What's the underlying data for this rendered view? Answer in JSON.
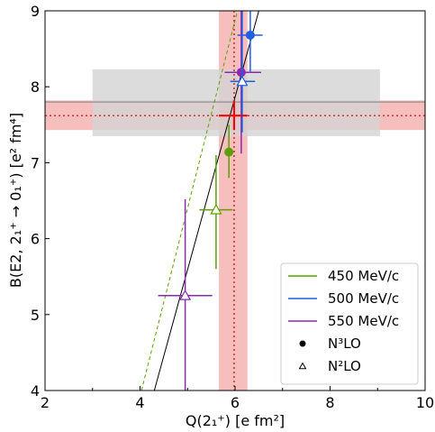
{
  "chart_data": {
    "type": "scatter",
    "xlabel": "Q(2₁⁺) [e fm²]",
    "ylabel": "B(E2, 2₁⁺ → 0₁⁺) [e² fm⁴]",
    "xlim": [
      2,
      10
    ],
    "ylim": [
      4,
      9
    ],
    "xticks": [
      "2",
      "4",
      "6",
      "8",
      "10"
    ],
    "yticks": [
      "4",
      "5",
      "6",
      "7",
      "8",
      "9"
    ],
    "grid": false,
    "legend_position": "bottom-right",
    "legend": [
      {
        "label": "450 MeV/c",
        "kind": "line",
        "color": "#5aa000"
      },
      {
        "label": "500 MeV/c",
        "kind": "line",
        "color": "#1f5fe0"
      },
      {
        "label": "550 MeV/c",
        "kind": "line",
        "color": "#8a28b4"
      },
      {
        "label": "N³LO",
        "kind": "filled-circle",
        "color": "#000000"
      },
      {
        "label": "N²LO",
        "kind": "open-triangle",
        "color": "#000000"
      }
    ],
    "bands": [
      {
        "name": "horizontal-red-band",
        "y_range": [
          7.43,
          7.82
        ],
        "color": "#f4a3a3"
      },
      {
        "name": "vertical-red-band",
        "x_range": [
          5.66,
          6.26
        ],
        "color": "#f4a3a3"
      },
      {
        "name": "gray-box",
        "x_range": [
          3.0,
          9.05
        ],
        "y_range": [
          7.35,
          8.23
        ],
        "color": "#d3d3d3"
      }
    ],
    "reference_lines": [
      {
        "orientation": "horizontal",
        "value": 7.62,
        "style": "dotted",
        "color": "#cc0000"
      },
      {
        "orientation": "vertical",
        "value": 5.98,
        "style": "dotted",
        "color": "#cc0000"
      },
      {
        "orientation": "horizontal",
        "value": 7.8,
        "style": "solid",
        "color": "#888888"
      }
    ],
    "fit_lines": [
      {
        "name": "solid-fit-line",
        "color": "#000000",
        "style": "solid",
        "points": [
          [
            4.3,
            4.0
          ],
          [
            6.5,
            9.0
          ]
        ]
      },
      {
        "name": "dashed-fit-line",
        "color": "#5aa000",
        "style": "dashed",
        "points": [
          [
            4.03,
            4.0
          ],
          [
            6.05,
            9.0
          ]
        ]
      }
    ],
    "series": [
      {
        "name": "450 MeV/c",
        "order": "N³LO",
        "marker": "circle",
        "color": "#5aa000",
        "x": 5.87,
        "y": 7.14,
        "yerr": [
          6.8,
          7.5
        ]
      },
      {
        "name": "500 MeV/c",
        "order": "N³LO",
        "marker": "circle",
        "color": "#1f5fe0",
        "x": 6.32,
        "y": 8.68,
        "xerr": [
          6.05,
          6.58
        ],
        "yerr": [
          8.2,
          9.0
        ]
      },
      {
        "name": "550 MeV/c",
        "order": "N³LO",
        "marker": "circle",
        "color": "#8a28b4",
        "x": 6.13,
        "y": 8.19,
        "xerr": [
          5.78,
          6.55
        ],
        "yerr": [
          7.12,
          9.0
        ]
      },
      {
        "name": "450 MeV/c",
        "order": "N²LO",
        "marker": "triangle",
        "color": "#5aa000",
        "x": 5.6,
        "y": 6.38,
        "xerr": [
          5.25,
          5.95
        ],
        "yerr": [
          5.6,
          7.1
        ]
      },
      {
        "name": "500 MeV/c",
        "order": "N²LO",
        "marker": "triangle",
        "color": "#1f5fe0",
        "x": 6.15,
        "y": 8.07,
        "xerr": [
          5.9,
          6.42
        ],
        "yerr": [
          7.4,
          9.0
        ]
      },
      {
        "name": "550 MeV/c",
        "order": "N²LO",
        "marker": "triangle",
        "color": "#8a28b4",
        "x": 4.95,
        "y": 5.25,
        "xerr": [
          4.38,
          5.52
        ],
        "yerr": [
          4.0,
          6.52
        ]
      }
    ],
    "experiment": {
      "x": 5.98,
      "y": 7.62,
      "xerr": [
        5.66,
        6.26
      ],
      "yerr": [
        7.43,
        7.82
      ],
      "color": "#ff0000"
    }
  }
}
